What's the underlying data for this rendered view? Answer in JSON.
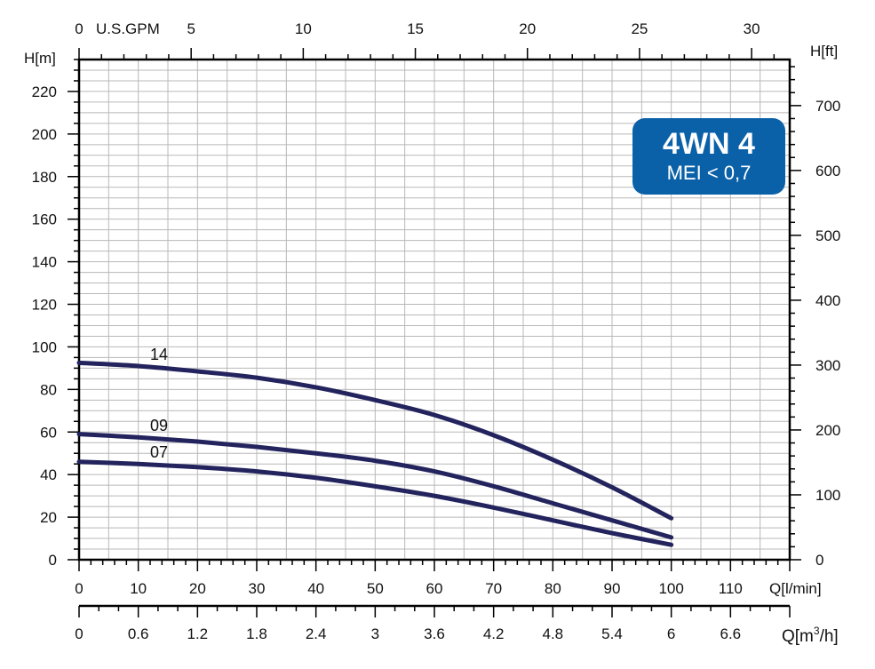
{
  "chart_data": {
    "type": "line",
    "title": "4WN 4",
    "subtitle": "MEI < 0,7",
    "left_axis": {
      "label": "H[m]",
      "range": [
        0,
        235
      ],
      "ticks": [
        0,
        20,
        40,
        60,
        80,
        100,
        120,
        140,
        160,
        180,
        200,
        220
      ]
    },
    "right_axis": {
      "label": "H[ft]",
      "range": [
        0,
        771
      ],
      "ticks": [
        0,
        100,
        200,
        300,
        400,
        500,
        600,
        700
      ]
    },
    "top_axis": {
      "label": "U.S.GPM",
      "range": [
        0,
        31.7
      ],
      "ticks": [
        0,
        5,
        10,
        15,
        20,
        25,
        30
      ]
    },
    "bottom_axis": {
      "label": "Q[l/min]",
      "range": [
        0,
        120
      ],
      "ticks": [
        0,
        10,
        20,
        30,
        40,
        50,
        60,
        70,
        80,
        90,
        100,
        110
      ]
    },
    "bottom_axis_2": {
      "label_main": "Q[m",
      "label_sup": "3",
      "label_end": "/h]",
      "range": [
        0,
        7.2
      ],
      "ticks": [
        0,
        0.6,
        1.2,
        1.8,
        2.4,
        3,
        3.6,
        4.2,
        4.8,
        5.4,
        6,
        6.6
      ],
      "tick_labels": [
        "0",
        "0.6",
        "1.2",
        "1.8",
        "2.4",
        "3",
        "3.6",
        "4.2",
        "4.8",
        "5.4",
        "6",
        "6.6"
      ]
    },
    "grid": true,
    "line_color": "#23235e",
    "badge_color": "#0b61a8",
    "series": [
      {
        "name": "14",
        "x": [
          0,
          10,
          20,
          30,
          40,
          50,
          60,
          70,
          80,
          90,
          100
        ],
        "y": [
          92.5,
          91,
          88.5,
          85.5,
          81,
          75,
          68,
          58.5,
          47,
          34,
          19.5
        ]
      },
      {
        "name": "09",
        "x": [
          0,
          10,
          20,
          30,
          40,
          50,
          60,
          70,
          80,
          90,
          100
        ],
        "y": [
          59,
          57.5,
          55.5,
          53,
          50,
          46.5,
          41.5,
          34.5,
          26.5,
          18.5,
          10.5
        ]
      },
      {
        "name": "07",
        "x": [
          0,
          10,
          20,
          30,
          40,
          50,
          60,
          70,
          80,
          90,
          100
        ],
        "y": [
          46,
          45,
          43.5,
          41.5,
          38.5,
          34.5,
          30,
          24.5,
          18.5,
          12.5,
          7
        ]
      }
    ]
  }
}
